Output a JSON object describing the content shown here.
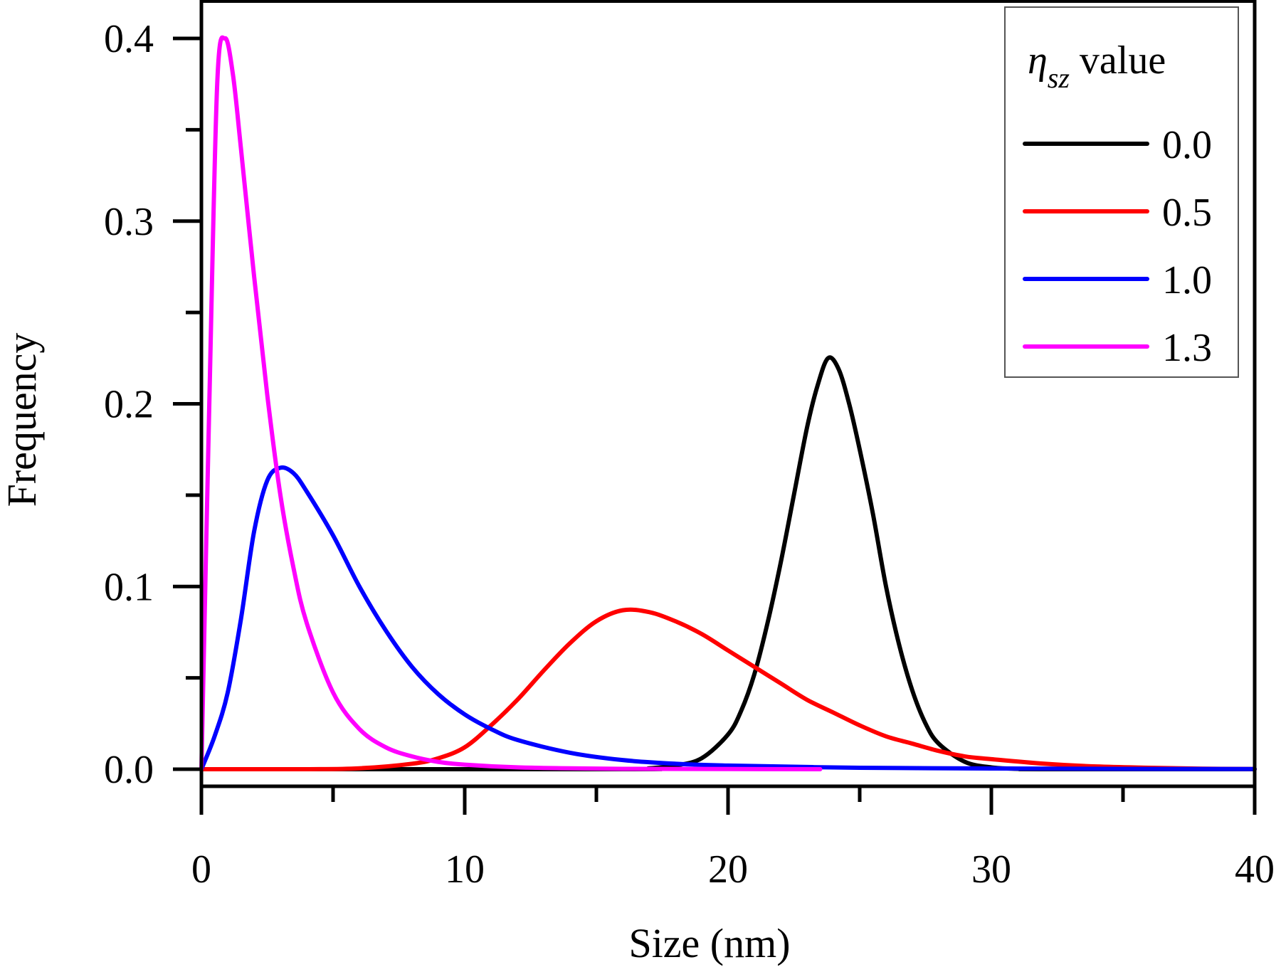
{
  "chart_data": {
    "type": "line",
    "title": "",
    "xlabel": "Size (nm)",
    "ylabel": "Frequency",
    "xlim": [
      0,
      40
    ],
    "ylim": [
      0,
      0.4
    ],
    "x_ticks": [
      "0",
      "10",
      "20",
      "30",
      "40"
    ],
    "y_ticks": [
      "0.0",
      "0.1",
      "0.2",
      "0.3",
      "0.4"
    ],
    "grid": false,
    "legend": {
      "position": "top-right",
      "title_symbol": "η",
      "title_subscript": "sz",
      "title_suffix": " value"
    },
    "series": [
      {
        "name": "0.0",
        "color": "#000000",
        "x": [
          0,
          16,
          17,
          18,
          19,
          20,
          20.5,
          21,
          21.5,
          22,
          22.5,
          23,
          23.4,
          23.8,
          24.2,
          24.6,
          25,
          25.5,
          26,
          26.5,
          27,
          27.5,
          28,
          29,
          30,
          31,
          32,
          40
        ],
        "y": [
          0,
          0,
          0.0005,
          0.002,
          0.006,
          0.019,
          0.032,
          0.052,
          0.08,
          0.113,
          0.15,
          0.187,
          0.21,
          0.225,
          0.219,
          0.2,
          0.175,
          0.14,
          0.1,
          0.068,
          0.043,
          0.025,
          0.014,
          0.004,
          0.001,
          0.0002,
          0,
          0
        ]
      },
      {
        "name": "0.5",
        "color": "#ff0000",
        "x": [
          0,
          4,
          6,
          8,
          9,
          10,
          11,
          12,
          13,
          14,
          15,
          16,
          17,
          18,
          19,
          20,
          21,
          22,
          23,
          24,
          25,
          26,
          27,
          28,
          29,
          30,
          32,
          34,
          36,
          38,
          40
        ],
        "y": [
          0,
          0,
          0.0005,
          0.003,
          0.006,
          0.012,
          0.024,
          0.038,
          0.054,
          0.069,
          0.081,
          0.087,
          0.086,
          0.081,
          0.074,
          0.065,
          0.056,
          0.047,
          0.038,
          0.031,
          0.024,
          0.018,
          0.014,
          0.01,
          0.007,
          0.0055,
          0.003,
          0.0015,
          0.0008,
          0.0003,
          0.0001
        ]
      },
      {
        "name": "1.0",
        "color": "#0000ff",
        "x": [
          0,
          0.5,
          1,
          1.5,
          2,
          2.5,
          3,
          3.5,
          4,
          5,
          6,
          7,
          8,
          9,
          10,
          11,
          12,
          14,
          16,
          18,
          20,
          25,
          30,
          35,
          40
        ],
        "y": [
          0,
          0.018,
          0.042,
          0.082,
          0.13,
          0.158,
          0.165,
          0.162,
          0.152,
          0.128,
          0.1,
          0.076,
          0.056,
          0.041,
          0.03,
          0.022,
          0.016,
          0.009,
          0.005,
          0.003,
          0.002,
          0.0008,
          0.0004,
          0.0002,
          0.0001
        ]
      },
      {
        "name": "1.3",
        "color": "#ff00ff",
        "x": [
          0,
          0.3,
          0.6,
          0.9,
          1.2,
          1.5,
          2,
          2.5,
          3,
          3.5,
          4,
          5,
          6,
          7,
          8,
          9,
          10,
          12,
          14,
          16,
          20,
          23.5
        ],
        "y": [
          0,
          0.2,
          0.375,
          0.4,
          0.38,
          0.34,
          0.27,
          0.205,
          0.15,
          0.11,
          0.08,
          0.042,
          0.022,
          0.012,
          0.007,
          0.004,
          0.0025,
          0.001,
          0.0005,
          0.0002,
          0.0001,
          0
        ]
      }
    ]
  }
}
